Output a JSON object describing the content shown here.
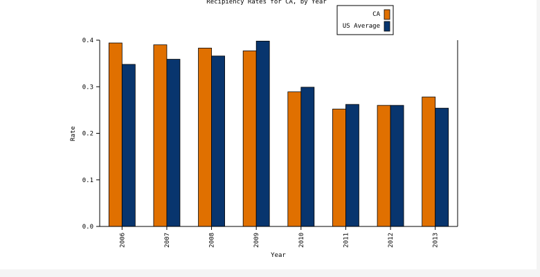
{
  "chart_data": {
    "type": "bar",
    "title": "Recipiency Rates for CA, by Year",
    "xlabel": "Year",
    "ylabel": "Rate",
    "categories": [
      "2006",
      "2007",
      "2008",
      "2009",
      "2010",
      "2011",
      "2012",
      "2013"
    ],
    "series": [
      {
        "name": "CA",
        "color": "#e07000",
        "values": [
          0.394,
          0.39,
          0.383,
          0.377,
          0.289,
          0.252,
          0.26,
          0.278
        ]
      },
      {
        "name": "US Average",
        "color": "#08356e",
        "values": [
          0.348,
          0.359,
          0.366,
          0.398,
          0.299,
          0.262,
          0.26,
          0.254
        ]
      }
    ],
    "ylim": [
      0,
      0.4
    ],
    "yticks": [
      "0.0",
      "0.1",
      "0.2",
      "0.3",
      "0.4"
    ],
    "grid": false,
    "legend_position": "top-right"
  }
}
